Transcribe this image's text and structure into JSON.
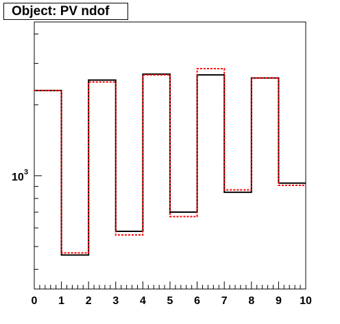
{
  "chart_data": {
    "type": "line",
    "title": "Object: PV ndof",
    "xlabel": "",
    "ylabel": "",
    "xlim": [
      0,
      10
    ],
    "y_log_scale": true,
    "ylim": [
      330,
      4500
    ],
    "x_tick_labels": [
      "0",
      "1",
      "2",
      "3",
      "4",
      "5",
      "6",
      "7",
      "8",
      "9",
      "10"
    ],
    "y_tick_labels": [
      {
        "value": 1000,
        "base": "10",
        "exponent": "3"
      }
    ],
    "bin_edges": [
      0,
      1,
      2,
      3,
      4,
      5,
      6,
      7,
      8,
      9,
      10
    ],
    "series": [
      {
        "style": "solid",
        "color": "#000000",
        "values": [
          2300,
          460,
          2550,
          580,
          2700,
          700,
          2680,
          850,
          2600,
          930
        ]
      },
      {
        "style": "dashed",
        "color": "#ff0000",
        "values": [
          2300,
          470,
          2500,
          560,
          2680,
          670,
          2850,
          870,
          2600,
          910
        ]
      }
    ]
  }
}
